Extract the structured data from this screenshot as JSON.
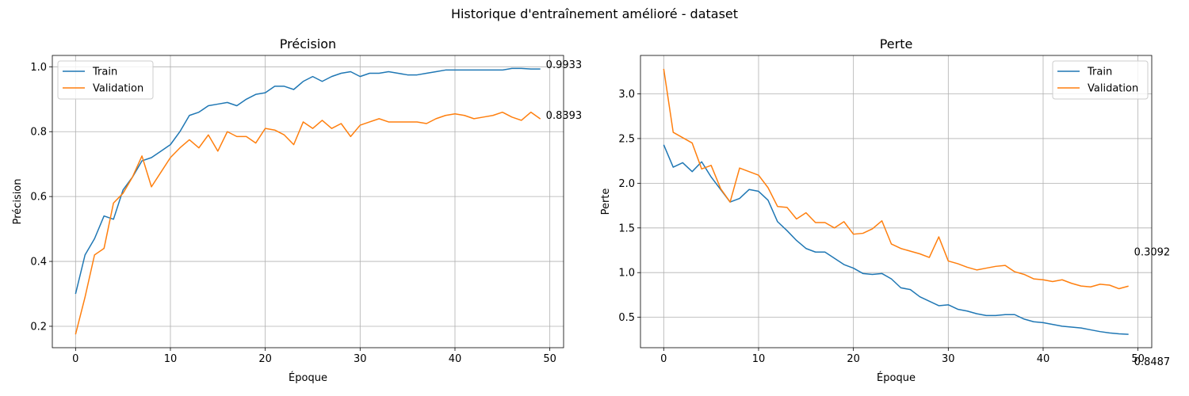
{
  "suptitle": "Historique d'entraînement amélioré - dataset",
  "colors": {
    "train": "#1f77b4",
    "validation": "#ff7f0e",
    "grid": "#b0b0b0",
    "axis": "#000000"
  },
  "chart_data": [
    {
      "id": "accuracy",
      "type": "line",
      "title": "Précision",
      "xlabel": "Époque",
      "ylabel": "Précision",
      "xlim": [
        -2.45,
        51.45
      ],
      "ylim": [
        0.134,
        1.035
      ],
      "xticks": [
        0,
        10,
        20,
        30,
        40,
        50
      ],
      "yticks": [
        0.2,
        0.4,
        0.6,
        0.8,
        1.0
      ],
      "ytick_labels": [
        "0.2",
        "0.4",
        "0.6",
        "0.8",
        "1.0"
      ],
      "grid": true,
      "legend_position": "upper-left",
      "end_labels": [
        "0.9933",
        "0.8393"
      ],
      "series": [
        {
          "name": "Train",
          "color": "#1f77b4",
          "values": [
            0.3,
            0.42,
            0.47,
            0.54,
            0.53,
            0.62,
            0.66,
            0.71,
            0.72,
            0.74,
            0.76,
            0.8,
            0.85,
            0.86,
            0.88,
            0.885,
            0.89,
            0.88,
            0.9,
            0.915,
            0.92,
            0.94,
            0.94,
            0.93,
            0.955,
            0.97,
            0.955,
            0.97,
            0.98,
            0.985,
            0.97,
            0.98,
            0.98,
            0.985,
            0.98,
            0.975,
            0.975,
            0.98,
            0.985,
            0.99,
            0.99,
            0.99,
            0.99,
            0.99,
            0.99,
            0.99,
            0.995,
            0.995,
            0.9933,
            0.9933
          ]
        },
        {
          "name": "Validation",
          "color": "#ff7f0e",
          "values": [
            0.175,
            0.29,
            0.42,
            0.44,
            0.58,
            0.61,
            0.66,
            0.725,
            0.63,
            0.675,
            0.72,
            0.75,
            0.775,
            0.75,
            0.79,
            0.74,
            0.8,
            0.785,
            0.785,
            0.765,
            0.81,
            0.805,
            0.79,
            0.76,
            0.83,
            0.81,
            0.835,
            0.81,
            0.825,
            0.785,
            0.82,
            0.83,
            0.84,
            0.83,
            0.83,
            0.83,
            0.83,
            0.825,
            0.84,
            0.85,
            0.855,
            0.85,
            0.84,
            0.845,
            0.85,
            0.86,
            0.845,
            0.835,
            0.86,
            0.8393
          ]
        }
      ]
    },
    {
      "id": "loss",
      "type": "line",
      "title": "Perte",
      "xlabel": "Époque",
      "ylabel": "Perte",
      "xlim": [
        -2.45,
        51.45
      ],
      "ylim": [
        0.16,
        3.43
      ],
      "xticks": [
        0,
        10,
        20,
        30,
        40,
        50
      ],
      "yticks": [
        0.5,
        1.0,
        1.5,
        2.0,
        2.5,
        3.0
      ],
      "ytick_labels": [
        "0.5",
        "1.0",
        "1.5",
        "2.0",
        "2.5",
        "3.0"
      ],
      "grid": true,
      "legend_position": "upper-right",
      "end_labels": [
        "0.8487",
        "0.3092"
      ],
      "series": [
        {
          "name": "Train",
          "color": "#1f77b4",
          "values": [
            2.43,
            2.18,
            2.23,
            2.13,
            2.24,
            2.07,
            1.93,
            1.79,
            1.83,
            1.93,
            1.91,
            1.81,
            1.57,
            1.47,
            1.36,
            1.27,
            1.23,
            1.23,
            1.16,
            1.09,
            1.05,
            0.99,
            0.98,
            0.99,
            0.93,
            0.83,
            0.81,
            0.73,
            0.68,
            0.63,
            0.64,
            0.59,
            0.57,
            0.54,
            0.52,
            0.52,
            0.53,
            0.53,
            0.48,
            0.45,
            0.44,
            0.42,
            0.4,
            0.39,
            0.38,
            0.36,
            0.34,
            0.325,
            0.315,
            0.3092
          ]
        },
        {
          "name": "Validation",
          "color": "#ff7f0e",
          "values": [
            3.28,
            2.57,
            2.51,
            2.45,
            2.16,
            2.2,
            1.94,
            1.79,
            2.17,
            2.13,
            2.09,
            1.95,
            1.74,
            1.73,
            1.6,
            1.67,
            1.56,
            1.56,
            1.5,
            1.57,
            1.43,
            1.44,
            1.49,
            1.58,
            1.32,
            1.27,
            1.24,
            1.21,
            1.17,
            1.4,
            1.13,
            1.1,
            1.06,
            1.03,
            1.05,
            1.07,
            1.08,
            1.01,
            0.98,
            0.93,
            0.92,
            0.9,
            0.92,
            0.88,
            0.85,
            0.84,
            0.87,
            0.86,
            0.82,
            0.8487
          ]
        }
      ]
    }
  ]
}
